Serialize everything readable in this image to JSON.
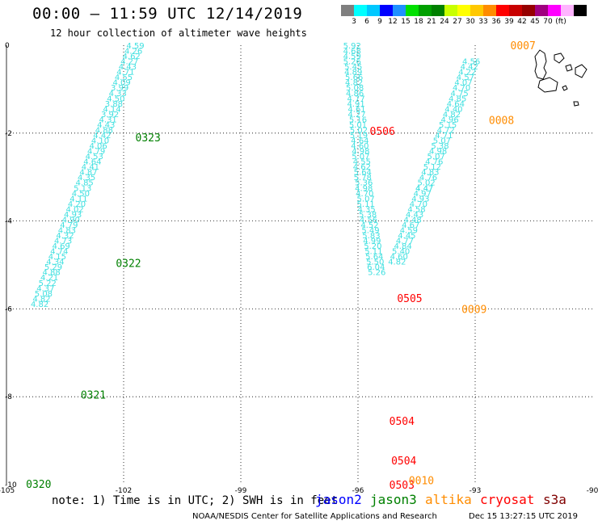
{
  "header": {
    "title": "00:00 — 11:59 UTC 12/14/2019",
    "subtitle": "12 hour collection of altimeter wave heights"
  },
  "color_scale": {
    "unit": "(ft)",
    "colors": [
      "#7f7f7f",
      "#00ffff",
      "#00c8ff",
      "#0000ff",
      "#1e90ff",
      "#00e000",
      "#00a000",
      "#008000",
      "#c8ff00",
      "#ffff00",
      "#ffc800",
      "#ff8c00",
      "#ff0000",
      "#c80000",
      "#960000",
      "#a00080",
      "#ff00ff",
      "#ffb4ff",
      "#000000"
    ],
    "labels": [
      "3",
      "6",
      "9",
      "12",
      "15",
      "18",
      "21",
      "24",
      "27",
      "30",
      "33",
      "36",
      "39",
      "42",
      "45",
      "70"
    ]
  },
  "map": {
    "x_ticks": [
      "-105",
      "-102",
      "-99",
      "-96",
      "-93",
      "-90"
    ],
    "y_ticks": [
      "0",
      "-2",
      "-4",
      "-6",
      "-8",
      "-10"
    ],
    "track_color": "#40e0e0",
    "tracks": [
      {
        "id": "jason3-west",
        "points": [
          [
            -101.7,
            0.0,
            "4.59"
          ],
          [
            -101.75,
            -0.12,
            "4.26"
          ],
          [
            -101.8,
            -0.24,
            "4.62"
          ],
          [
            -101.85,
            -0.36,
            "4.27"
          ],
          [
            -101.9,
            -0.48,
            "4.43"
          ],
          [
            -101.95,
            -0.6,
            "4.71"
          ],
          [
            -102.0,
            -0.72,
            "4.55"
          ],
          [
            -102.05,
            -0.84,
            "4.09"
          ],
          [
            -102.1,
            -0.96,
            "3.99"
          ],
          [
            -102.15,
            -1.08,
            "4.33"
          ],
          [
            -102.2,
            -1.2,
            "4.50"
          ],
          [
            -102.25,
            -1.32,
            "3.88"
          ],
          [
            -102.3,
            -1.44,
            "4.14"
          ],
          [
            -102.35,
            -1.56,
            "3.92"
          ],
          [
            -102.4,
            -1.68,
            "4.31"
          ],
          [
            -102.45,
            -1.8,
            "4.43"
          ],
          [
            -102.5,
            -1.92,
            "4.88"
          ],
          [
            -102.55,
            -2.04,
            "4.42"
          ],
          [
            -102.6,
            -2.16,
            "4.10"
          ],
          [
            -102.65,
            -2.28,
            "4.06"
          ],
          [
            -102.7,
            -2.4,
            "4.79"
          ],
          [
            -102.75,
            -2.52,
            "4.53"
          ],
          [
            -102.8,
            -2.64,
            "4.64"
          ],
          [
            -102.85,
            -2.76,
            "4.41"
          ],
          [
            -102.9,
            -2.88,
            "4.87"
          ],
          [
            -102.95,
            -3.0,
            "4.35"
          ],
          [
            -103.0,
            -3.12,
            "4.85"
          ],
          [
            -103.05,
            -3.24,
            "5.13"
          ],
          [
            -103.1,
            -3.36,
            "4.50"
          ],
          [
            -103.15,
            -3.48,
            "4.11"
          ],
          [
            -103.2,
            -3.6,
            "4.20"
          ],
          [
            -103.25,
            -3.72,
            "4.02"
          ],
          [
            -103.3,
            -3.84,
            "4.93"
          ],
          [
            -103.35,
            -3.96,
            "4.90"
          ],
          [
            -103.4,
            -4.08,
            "4.79"
          ],
          [
            -103.45,
            -4.2,
            "4.83"
          ],
          [
            -103.5,
            -4.32,
            "4.32"
          ],
          [
            -103.55,
            -4.44,
            "4.73"
          ],
          [
            -103.6,
            -4.56,
            "4.69"
          ],
          [
            -103.65,
            -4.68,
            "4.74"
          ],
          [
            -103.7,
            -4.8,
            "4.15"
          ],
          [
            -103.75,
            -4.92,
            "4.34"
          ],
          [
            -103.8,
            -5.04,
            "5.29"
          ],
          [
            -103.85,
            -5.16,
            "4.88"
          ],
          [
            -103.9,
            -5.28,
            "4.21"
          ],
          [
            -103.95,
            -5.4,
            "5.22"
          ],
          [
            -104.0,
            -5.52,
            "4.37"
          ],
          [
            -104.05,
            -5.64,
            "5.08"
          ],
          [
            -104.1,
            -5.76,
            "4.82"
          ],
          [
            -104.15,
            -5.88,
            "4.82"
          ]
        ]
      },
      {
        "id": "cryosat-middle",
        "points": [
          [
            -96.15,
            0.0,
            "5.92"
          ],
          [
            -96.15,
            -0.12,
            "4.68"
          ],
          [
            -96.15,
            -0.24,
            "4.59"
          ],
          [
            -96.15,
            -0.36,
            "5.26"
          ],
          [
            -96.12,
            -0.48,
            "5.45"
          ],
          [
            -96.12,
            -0.6,
            "4.89"
          ],
          [
            -96.1,
            -0.72,
            "5.66"
          ],
          [
            -96.1,
            -0.84,
            "4.82"
          ],
          [
            -96.08,
            -0.96,
            "5.08"
          ],
          [
            -96.08,
            -1.08,
            "4.86"
          ],
          [
            -96.05,
            -1.2,
            "4.77"
          ],
          [
            -96.05,
            -1.32,
            "4.91"
          ],
          [
            -96.03,
            -1.44,
            "4.61"
          ],
          [
            -96.03,
            -1.56,
            "4.27"
          ],
          [
            -96.0,
            -1.68,
            "5.16"
          ],
          [
            -96.0,
            -1.8,
            "5.01"
          ],
          [
            -95.98,
            -1.92,
            "5.02"
          ],
          [
            -95.98,
            -2.04,
            "5.19"
          ],
          [
            -95.95,
            -2.16,
            "4.64"
          ],
          [
            -95.95,
            -2.28,
            "4.60"
          ],
          [
            -95.93,
            -2.4,
            "4.98"
          ],
          [
            -95.93,
            -2.52,
            "5.07"
          ],
          [
            -95.9,
            -2.64,
            "4.55"
          ],
          [
            -95.9,
            -2.76,
            "4.62"
          ],
          [
            -95.88,
            -2.88,
            "5.64"
          ],
          [
            -95.88,
            -3.0,
            "5.78"
          ],
          [
            -95.85,
            -3.12,
            "5.36"
          ],
          [
            -95.85,
            -3.24,
            "4.98"
          ],
          [
            -95.83,
            -3.36,
            "4.70"
          ],
          [
            -95.8,
            -3.48,
            "5.07"
          ],
          [
            -95.8,
            -3.6,
            "5.11"
          ],
          [
            -95.78,
            -3.72,
            "4.35"
          ],
          [
            -95.75,
            -3.84,
            "5.38"
          ],
          [
            -95.73,
            -3.96,
            "4.56"
          ],
          [
            -95.7,
            -4.08,
            "4.52"
          ],
          [
            -95.68,
            -4.2,
            "5.49"
          ],
          [
            -95.66,
            -4.32,
            "5.83"
          ],
          [
            -95.64,
            -4.44,
            "4.99"
          ],
          [
            -95.62,
            -4.56,
            "5.20"
          ],
          [
            -95.6,
            -4.68,
            "5.11"
          ],
          [
            -95.58,
            -4.8,
            "5.64"
          ],
          [
            -95.56,
            -4.92,
            "5.50"
          ],
          [
            -95.54,
            -5.04,
            "6.04"
          ],
          [
            -95.52,
            -5.16,
            "5.26"
          ]
        ]
      },
      {
        "id": "cryosat-east",
        "points": [
          [
            -95.0,
            -4.92,
            "4.82"
          ],
          [
            -94.95,
            -4.8,
            "4.60"
          ],
          [
            -94.9,
            -4.68,
            "5.40"
          ],
          [
            -94.85,
            -4.56,
            "4.84"
          ],
          [
            -94.8,
            -4.44,
            "4.77"
          ],
          [
            -94.75,
            -4.32,
            "4.45"
          ],
          [
            -94.7,
            -4.2,
            "4.59"
          ],
          [
            -94.65,
            -4.08,
            "4.67"
          ],
          [
            -94.6,
            -3.96,
            "4.48"
          ],
          [
            -94.55,
            -3.84,
            "4.43"
          ],
          [
            -94.5,
            -3.72,
            "4.58"
          ],
          [
            -94.45,
            -3.6,
            "4.70"
          ],
          [
            -94.4,
            -3.48,
            "4.93"
          ],
          [
            -94.35,
            -3.36,
            "4.97"
          ],
          [
            -94.3,
            -3.24,
            "4.47"
          ]
        ]
      },
      {
        "id": "altika-east",
        "points": [
          [
            -94.3,
            -3.24,
            "4.47"
          ],
          [
            -94.25,
            -3.12,
            "5.02"
          ],
          [
            -94.2,
            -3.0,
            "4.76"
          ],
          [
            -94.15,
            -2.88,
            "4.83"
          ],
          [
            -94.1,
            -2.76,
            "5.12"
          ],
          [
            -94.05,
            -2.64,
            "4.76"
          ],
          [
            -94.0,
            -2.52,
            "5.07"
          ],
          [
            -93.95,
            -2.4,
            "4.98"
          ],
          [
            -93.9,
            -2.28,
            "5.38"
          ],
          [
            -93.85,
            -2.16,
            "5.07"
          ],
          [
            -93.8,
            -2.04,
            "4.71"
          ],
          [
            -93.75,
            -1.92,
            "4.72"
          ],
          [
            -93.7,
            -1.8,
            "5.15"
          ],
          [
            -93.65,
            -1.68,
            "4.96"
          ],
          [
            -93.6,
            -1.56,
            "4.82"
          ],
          [
            -93.55,
            -1.44,
            "4.40"
          ],
          [
            -93.5,
            -1.32,
            "4.64"
          ],
          [
            -93.45,
            -1.2,
            "4.85"
          ],
          [
            -93.4,
            -1.08,
            "4.75"
          ],
          [
            -93.35,
            -0.96,
            "4.70"
          ],
          [
            -93.3,
            -0.84,
            "4.07"
          ],
          [
            -93.25,
            -0.72,
            "4.57"
          ],
          [
            -93.2,
            -0.6,
            "4.22"
          ],
          [
            -93.15,
            -0.48,
            "4.42"
          ],
          [
            -93.1,
            -0.36,
            "4.56"
          ]
        ]
      }
    ],
    "time_labels": [
      {
        "text": "0323",
        "color": "#008000",
        "lon": -101.7,
        "lat": -2.1
      },
      {
        "text": "0322",
        "color": "#008000",
        "lon": -102.2,
        "lat": -4.95
      },
      {
        "text": "0321",
        "color": "#008000",
        "lon": -103.1,
        "lat": -7.95
      },
      {
        "text": "0320",
        "color": "#008000",
        "lon": -104.5,
        "lat": -9.98
      },
      {
        "text": "0506",
        "color": "#ff0000",
        "lon": -95.7,
        "lat": -1.95
      },
      {
        "text": "0505",
        "color": "#ff0000",
        "lon": -95.0,
        "lat": -5.75
      },
      {
        "text": "0504",
        "color": "#ff0000",
        "lon": -95.2,
        "lat": -8.55
      },
      {
        "text": "0504",
        "color": "#ff0000",
        "lon": -95.15,
        "lat": -9.45
      },
      {
        "text": "0503",
        "color": "#ff0000",
        "lon": -95.2,
        "lat": -10.0
      },
      {
        "text": "0007",
        "color": "#ff8c00",
        "lon": -92.1,
        "lat": 0.0
      },
      {
        "text": "0008",
        "color": "#ff8c00",
        "lon": -92.65,
        "lat": -1.7
      },
      {
        "text": "0009",
        "color": "#ff8c00",
        "lon": -93.35,
        "lat": -6.0
      },
      {
        "text": "0010",
        "color": "#ff8c00",
        "lon": -94.7,
        "lat": -9.9
      }
    ]
  },
  "legend": {
    "note": "note: 1) Time is in UTC; 2) SWH is in feet",
    "satellites": [
      {
        "name": "jason2",
        "color": "#0000ff"
      },
      {
        "name": "jason3",
        "color": "#008000"
      },
      {
        "name": "altika",
        "color": "#ff8c00"
      },
      {
        "name": "cryosat",
        "color": "#ff0000"
      },
      {
        "name": "s3a",
        "color": "#800000"
      }
    ]
  },
  "footer": {
    "credit": "NOAA/NESDIS Center for Satellite Applications and Research",
    "stamp": "Dec 15 13:27:15 UTC 2019"
  }
}
